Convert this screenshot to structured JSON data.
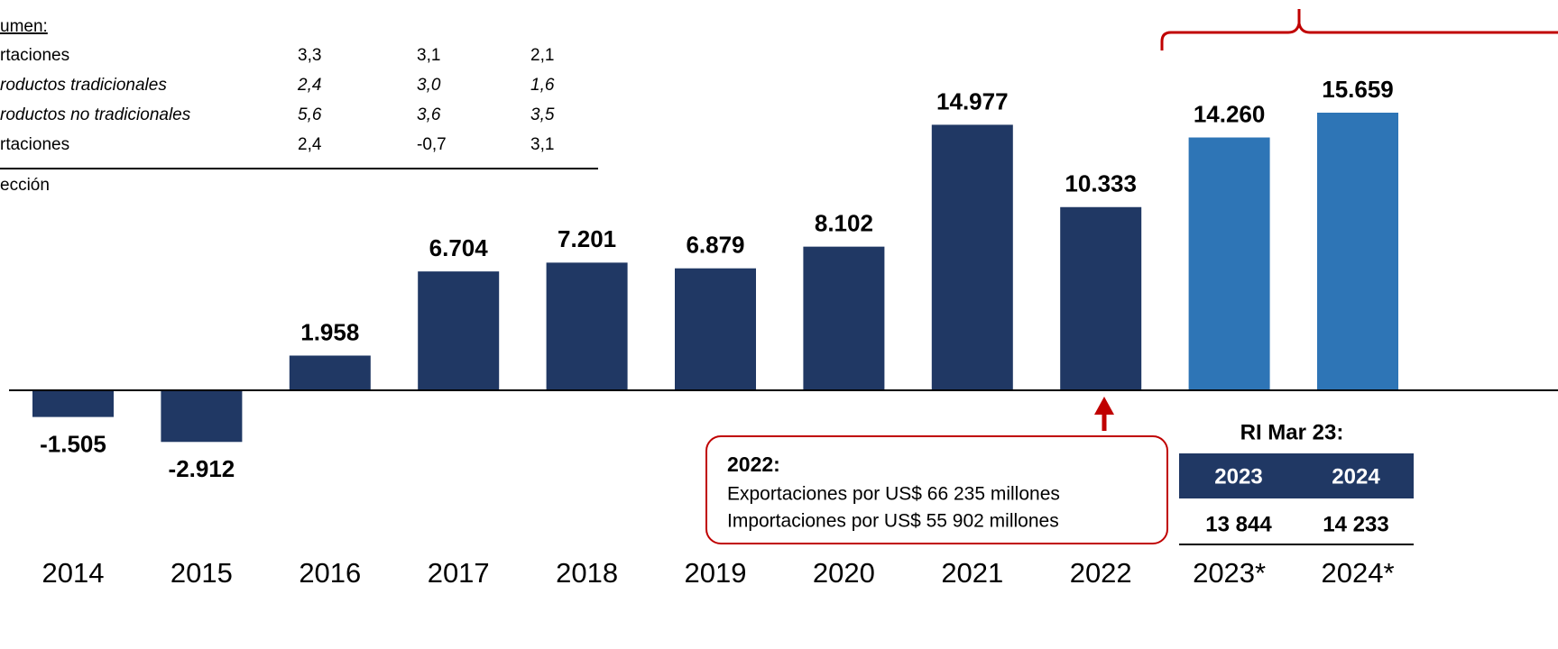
{
  "chart_data": {
    "type": "bar",
    "categories": [
      "2014",
      "2015",
      "2016",
      "2017",
      "2018",
      "2019",
      "2020",
      "2021",
      "2022",
      "2023*",
      "2024*"
    ],
    "values": [
      -1505,
      -2912,
      1958,
      6704,
      7201,
      6879,
      8102,
      14977,
      10333,
      14260,
      15659
    ],
    "value_labels": [
      "-1.505",
      "-2.912",
      "1.958",
      "6.704",
      "7.201",
      "6.879",
      "8.102",
      "14.977",
      "10.333",
      "14.260",
      "15.659"
    ],
    "colors": [
      "#203864",
      "#203864",
      "#203864",
      "#203864",
      "#203864",
      "#203864",
      "#203864",
      "#203864",
      "#203864",
      "#2e75b6",
      "#2e75b6"
    ]
  },
  "summary_table": {
    "title": "umen:",
    "rows": [
      {
        "label": "rtaciones",
        "values": [
          "3,3",
          "3,1",
          "2,1"
        ]
      },
      {
        "label": "roductos tradicionales",
        "values": [
          "2,4",
          "3,0",
          "1,6"
        ]
      },
      {
        "label": "roductos no tradicionales",
        "values": [
          "5,6",
          "3,6",
          "3,5"
        ]
      },
      {
        "label": "rtaciones",
        "values": [
          "2,4",
          "-0,7",
          "3,1"
        ]
      }
    ],
    "note": "ección"
  },
  "callout": {
    "title": "2022:",
    "lines": [
      "Exportaciones por US$ 66 235 millones",
      "Importaciones por US$ 55 902  millones"
    ]
  },
  "ri_table": {
    "title": "RI Mar 23:",
    "header": [
      "2023",
      "2024"
    ],
    "values": [
      "13 844",
      "14 233"
    ]
  }
}
